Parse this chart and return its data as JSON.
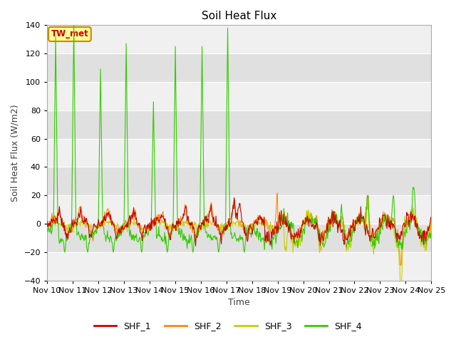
{
  "title": "Soil Heat Flux",
  "ylabel": "Soil Heat Flux (W/m2)",
  "xlabel": "Time",
  "ylim": [
    -40,
    140
  ],
  "yticks": [
    -40,
    -20,
    0,
    20,
    40,
    60,
    80,
    100,
    120,
    140
  ],
  "xtick_labels": [
    "Nov 10",
    "Nov 11",
    "Nov 12",
    "Nov 13",
    "Nov 14",
    "Nov 15",
    "Nov 16",
    "Nov 17",
    "Nov 18",
    "Nov 19",
    "Nov 20",
    "Nov 21",
    "Nov 22",
    "Nov 23",
    "Nov 24",
    "Nov 25"
  ],
  "colors": {
    "SHF_1": "#cc0000",
    "SHF_2": "#ff8800",
    "SHF_3": "#cccc00",
    "SHF_4": "#33cc00"
  },
  "annotation_text": "TW_met",
  "annotation_bg": "#ffff99",
  "annotation_border": "#cc8800",
  "fig_bg": "#ffffff",
  "plot_bg": "#e8e8e8",
  "band_light": "#f0f0f0",
  "band_dark": "#e0e0e0",
  "grid_color": "#ffffff",
  "linewidth": 0.8,
  "title_fontsize": 11,
  "label_fontsize": 9,
  "tick_fontsize": 8
}
